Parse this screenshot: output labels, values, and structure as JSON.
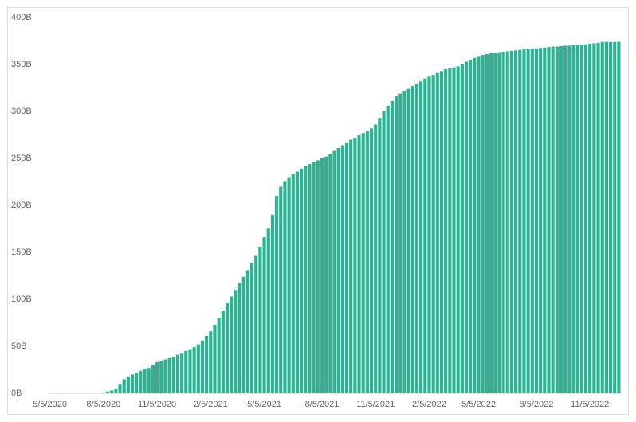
{
  "chart_data": {
    "type": "bar",
    "color": "#2db391",
    "categories": [
      "5/5/2020",
      null,
      null,
      null,
      null,
      null,
      null,
      null,
      null,
      null,
      null,
      null,
      null,
      "8/5/2020",
      null,
      null,
      null,
      null,
      null,
      null,
      null,
      null,
      null,
      null,
      null,
      null,
      "11/5/2020",
      null,
      null,
      null,
      null,
      null,
      null,
      null,
      null,
      null,
      null,
      null,
      null,
      "2/5/2021",
      null,
      null,
      null,
      null,
      null,
      null,
      null,
      null,
      null,
      null,
      null,
      null,
      "5/5/2021",
      null,
      null,
      null,
      null,
      null,
      null,
      null,
      null,
      null,
      null,
      null,
      null,
      null,
      "8/5/2021",
      null,
      null,
      null,
      null,
      null,
      null,
      null,
      null,
      null,
      null,
      null,
      null,
      "11/5/2021",
      null,
      null,
      null,
      null,
      null,
      null,
      null,
      null,
      null,
      null,
      null,
      null,
      "2/5/2022",
      null,
      null,
      null,
      null,
      null,
      null,
      null,
      null,
      null,
      null,
      null,
      "5/5/2022",
      null,
      null,
      null,
      null,
      null,
      null,
      null,
      null,
      null,
      null,
      null,
      null,
      null,
      "8/5/2022",
      null,
      null,
      null,
      null,
      null,
      null,
      null,
      null,
      null,
      null,
      null,
      null,
      "11/5/2022",
      null,
      null,
      null,
      null,
      null,
      null,
      null
    ],
    "values": [
      0,
      0,
      0,
      0,
      0,
      0,
      0,
      0,
      0,
      0,
      0,
      0,
      0.5,
      1,
      2,
      3,
      5,
      10,
      15,
      18,
      20,
      22,
      24,
      26,
      27,
      30,
      33,
      34,
      36,
      38,
      39,
      41,
      43,
      45,
      47,
      49,
      52,
      56,
      61,
      66,
      73,
      80,
      88,
      96,
      103,
      110,
      117,
      124,
      131,
      139,
      147,
      156,
      166,
      176,
      190,
      210,
      220,
      226,
      230,
      233,
      236,
      239,
      242,
      244,
      246,
      248,
      250,
      252,
      255,
      258,
      261,
      264,
      267,
      270,
      272,
      275,
      277,
      279,
      282,
      286,
      293,
      300,
      306,
      311,
      316,
      319,
      322,
      324,
      327,
      329,
      332,
      335,
      337,
      339,
      341,
      343,
      345,
      346,
      347,
      348,
      350,
      353,
      355,
      357,
      359,
      360,
      361,
      362,
      362.5,
      363,
      363.5,
      364,
      364.5,
      365,
      365.5,
      366,
      366.5,
      367,
      367,
      367.5,
      368,
      368.5,
      369,
      369,
      369.5,
      370,
      370,
      370.5,
      371,
      371,
      371.5,
      372,
      372.5,
      373,
      374,
      374,
      374,
      374,
      374
    ],
    "ylim": [
      0,
      400
    ],
    "yticks": [
      {
        "value": 0,
        "label": "0B"
      },
      {
        "value": 50,
        "label": "50B"
      },
      {
        "value": 100,
        "label": "100B"
      },
      {
        "value": 150,
        "label": "150B"
      },
      {
        "value": 200,
        "label": "200B"
      },
      {
        "value": 250,
        "label": "250B"
      },
      {
        "value": 300,
        "label": "300B"
      },
      {
        "value": 350,
        "label": "350B"
      },
      {
        "value": 400,
        "label": "400B"
      }
    ]
  }
}
